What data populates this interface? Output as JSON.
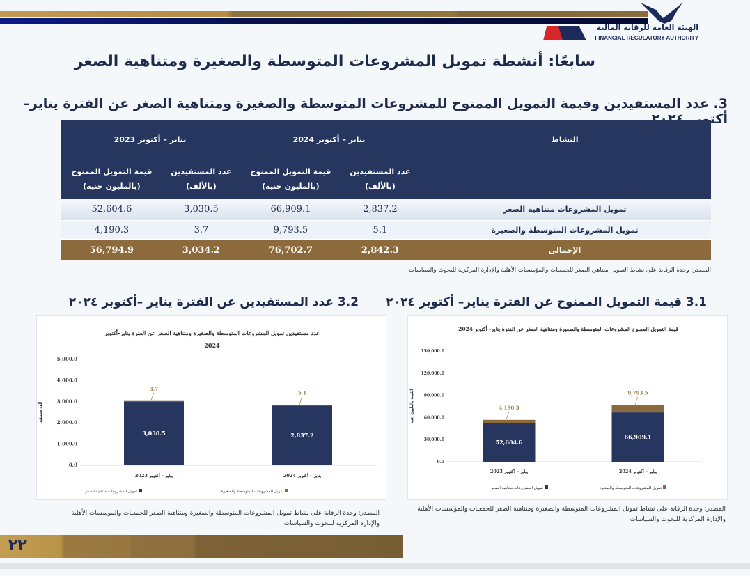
{
  "header": {
    "logo_ar": "الهيئة العامة للرقابة المالية",
    "logo_en": "FINANCIAL REGULATORY AUTHORITY",
    "logo_mark": "FRA"
  },
  "title": "سابعًا: أنشطة تمويل المشروعات المتوسطة والصغيرة ومتناهية الصغر",
  "section_heading": "3. عدد المستفيدين وقيمة التمويل الممنوح للمشروعات المتوسطة والصغيرة ومتناهية الصغر عن الفترة يناير– أكتوبر ٢٠٢٤",
  "table": {
    "activity_header": "النشاط",
    "period_2024": "يناير – أكتوبر 2024",
    "period_2023": "يناير – أكتوبر 2023",
    "col_beneficiaries": "عدد المستفيدين",
    "col_beneficiaries_unit": "(بالألف)",
    "col_value": "قيمة التمويل الممنوح",
    "col_value_unit": "(بالمليون جنيه)",
    "rows": [
      {
        "activity": "تمويل المشروعات متناهية الصغر",
        "ben_2024": "2,837.2",
        "val_2024": "66,909.1",
        "ben_2023": "3,030.5",
        "val_2023": "52,604.6"
      },
      {
        "activity": "تمويل المشروعات المتوسطة والصغيرة",
        "ben_2024": "5.1",
        "val_2024": "9,793.5",
        "ben_2023": "3.7",
        "val_2023": "4,190.3"
      },
      {
        "activity": "الإجمالى",
        "ben_2024": "2,842.3",
        "val_2024": "76,702.7",
        "ben_2023": "3,034.2",
        "val_2023": "56,794.9"
      }
    ],
    "source": "المصدر: وحدة الرقابة على نشاط التمويل متناهي الصغر للجمعيات والمؤسسات الأهلية والإدارة المركزية للبحوث والسياسات"
  },
  "subsection_31": "3.1 قيمة التمويل الممنوح عن الفترة يناير– أكتوبر ٢٠٢٤",
  "subsection_32": "3.2 عدد المستفيدين عن الفترة يناير –أكتوبر ٢٠٢٤",
  "chart_source": "المصدر: وحدة الرقابة على نشاط تمويل المشروعات المتوسطة والصغيرة ومتناهية الصغر للجمعيات والمؤسسات الأهلية والإدارة المركزية للبحوث والسياسات",
  "colors": {
    "navy": "#26365e",
    "brown": "#8d6a3b",
    "gold": "#b99448"
  },
  "page_number": "٢٢",
  "chart_data": [
    {
      "id": "value",
      "type": "bar",
      "stacked": true,
      "title": "قيمة التمويل الممنوح المشروعات المتوسطة والصغيرة ومتناهية الصغر عن الفترة يناير- أكتوبر 2024",
      "ylabel": "القيمة بالمليون جنيه",
      "ylim": [
        0,
        150000
      ],
      "yticks": [
        "0.0",
        "30,000.0",
        "60,000.0",
        "90,000.0",
        "120,000.0",
        "150,000.0"
      ],
      "ytick_values": [
        0,
        30000,
        60000,
        90000,
        120000,
        150000
      ],
      "categories": [
        "يناير - أكتوبر 2023",
        "يناير - أكتوبر 2024"
      ],
      "series": [
        {
          "name": "تمويل المشروعات متناهية الصغر",
          "color": "#26365e",
          "values": [
            52604.6,
            66909.1
          ],
          "labels": [
            "52,604.6",
            "66,909.1"
          ]
        },
        {
          "name": "تمويل المشروعات المتوسطة والصغيرة",
          "color": "#8d6a3b",
          "values": [
            4190.3,
            9793.5
          ],
          "labels": [
            "4,190.3",
            "9,793.5"
          ]
        }
      ],
      "legend": "bottom",
      "grid": false
    },
    {
      "id": "beneficiaries",
      "type": "bar",
      "stacked": true,
      "title": "عدد مستفيدين تمويل المشروعات المتوسطة والصغيرة ومتناهية الصغر عن الفترة يناير–أكتوبر 2024",
      "ylabel": "ألف مستفيد",
      "ylim": [
        0,
        5000
      ],
      "yticks": [
        "0.0",
        "1,000.0",
        "2,000.0",
        "3,000.0",
        "4,000.0",
        "5,000.0"
      ],
      "ytick_values": [
        0,
        1000,
        2000,
        3000,
        4000,
        5000
      ],
      "categories": [
        "يناير - أكتوبر 2023",
        "يناير - أكتوبر 2024"
      ],
      "series": [
        {
          "name": "تمويل المشروعات متناهية الصغر",
          "color": "#26365e",
          "values": [
            3030.5,
            2837.2
          ],
          "labels": [
            "3,030.5",
            "2,837.2"
          ]
        },
        {
          "name": "تمويل المشروعات المتوسطة والصغيرة",
          "color": "#8d6a3b",
          "values": [
            3.7,
            5.1
          ],
          "labels": [
            "3.7",
            "5.1"
          ]
        }
      ],
      "legend": "bottom",
      "grid": false
    }
  ]
}
